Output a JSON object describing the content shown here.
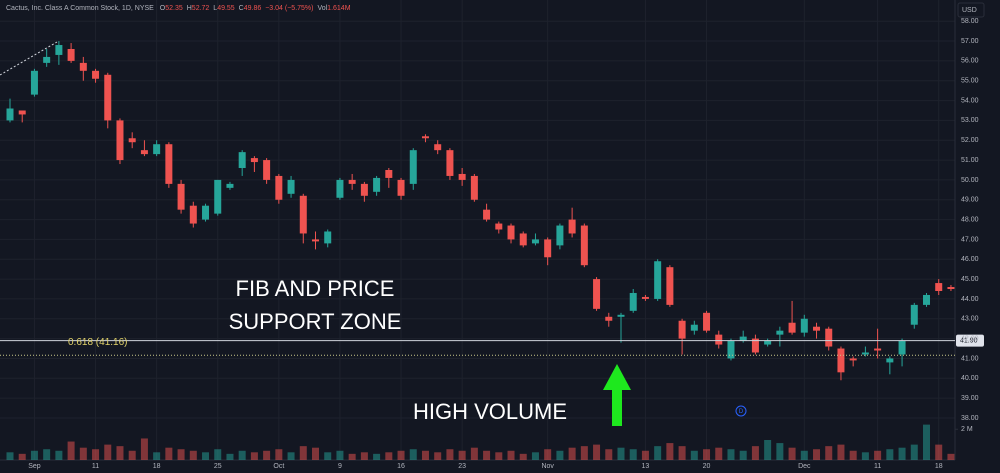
{
  "chart_data": {
    "type": "candlestick",
    "title": "Cactus, Inc. Class A Common Stock, 1D, NYSE",
    "header_stats": [
      {
        "key": "O",
        "value": "52.35"
      },
      {
        "key": "H",
        "value": "52.72"
      },
      {
        "key": "L",
        "value": "49.55"
      },
      {
        "key": "C",
        "value": "49.86"
      }
    ],
    "header_change": "−3.04 (−5.75%)",
    "header_volume": {
      "key": "Vol",
      "value": "1.614M"
    },
    "currency": "USD",
    "annotations": [
      "FIB AND PRICE",
      "SUPPORT ZONE",
      "HIGH VOLUME"
    ],
    "price_line": {
      "value": 41.9,
      "label": "41.90"
    },
    "fib_line": {
      "value": 41.16,
      "label": "0.618 (41.16)"
    },
    "dividend_marker": "D",
    "up_color": "#26a69a",
    "down_color": "#ef5350",
    "categories": [
      null,
      null,
      "Sep",
      null,
      null,
      null,
      null,
      "11",
      null,
      null,
      null,
      null,
      "18",
      null,
      null,
      null,
      null,
      "25",
      null,
      null,
      null,
      null,
      "Oct",
      null,
      null,
      null,
      null,
      "9",
      null,
      null,
      null,
      null,
      "16",
      null,
      null,
      null,
      null,
      "23",
      null,
      null,
      null,
      null,
      null,
      null,
      "Nov",
      null,
      null,
      null,
      null,
      null,
      null,
      null,
      "13",
      null,
      null,
      null,
      null,
      "20",
      null,
      null,
      null,
      null,
      null,
      null,
      null,
      "Dec",
      null,
      null,
      null,
      null,
      null,
      "11",
      null,
      null,
      null,
      null,
      "18",
      null
    ],
    "open": [
      53.0,
      53.5,
      54.3,
      55.9,
      56.3,
      56.6,
      55.9,
      55.5,
      55.3,
      53.0,
      52.1,
      51.5,
      51.3,
      51.8,
      49.8,
      48.7,
      48.0,
      48.3,
      49.6,
      50.6,
      51.1,
      51.0,
      50.2,
      49.3,
      49.2,
      47.0,
      46.8,
      49.1,
      50.0,
      49.8,
      49.4,
      50.5,
      50.0,
      49.8,
      52.2,
      51.8,
      51.5,
      50.3,
      50.2,
      48.5,
      47.8,
      47.7,
      47.3,
      46.8,
      47.0,
      46.7,
      48.0,
      47.7,
      45.0,
      43.1,
      43.1,
      43.4,
      44.1,
      44.0,
      45.6,
      42.9,
      42.4,
      43.3,
      42.2,
      41.0,
      41.9,
      42.0,
      41.7,
      42.2,
      42.8,
      42.3,
      42.6,
      42.5,
      41.5,
      41.0,
      41.2,
      41.5,
      40.8,
      41.2,
      42.7,
      43.7,
      44.8,
      44.6
    ],
    "high": [
      54.1,
      53.5,
      55.6,
      56.6,
      57.0,
      56.9,
      56.2,
      55.6,
      55.4,
      53.1,
      52.4,
      52.0,
      52.0,
      51.9,
      50.0,
      48.9,
      48.8,
      50.0,
      49.9,
      51.5,
      51.2,
      51.1,
      50.3,
      50.2,
      49.3,
      47.4,
      47.5,
      50.1,
      50.3,
      49.9,
      50.2,
      50.6,
      50.1,
      51.6,
      52.3,
      52.0,
      51.6,
      50.6,
      50.3,
      48.8,
      47.9,
      47.8,
      47.4,
      47.3,
      47.1,
      47.8,
      48.6,
      47.8,
      45.1,
      43.3,
      43.3,
      44.5,
      44.2,
      46.0,
      45.7,
      43.0,
      42.9,
      43.4,
      42.4,
      42.0,
      42.4,
      42.2,
      42.0,
      42.6,
      43.9,
      43.2,
      42.8,
      42.6,
      41.6,
      41.1,
      41.6,
      42.5,
      41.1,
      42.0,
      43.8,
      44.3,
      45.0,
      44.7
    ],
    "low": [
      52.9,
      52.9,
      54.2,
      55.7,
      55.8,
      55.9,
      55.0,
      54.9,
      52.6,
      50.8,
      51.6,
      51.2,
      51.2,
      49.6,
      48.3,
      47.6,
      47.9,
      48.2,
      49.5,
      50.2,
      50.4,
      49.8,
      48.8,
      49.1,
      46.8,
      46.5,
      46.6,
      49.0,
      49.5,
      48.9,
      49.2,
      49.6,
      49.0,
      49.5,
      51.9,
      51.3,
      50.0,
      49.7,
      48.9,
      47.9,
      47.3,
      46.8,
      46.6,
      46.7,
      45.7,
      46.5,
      47.1,
      45.6,
      43.4,
      42.6,
      41.8,
      43.3,
      43.9,
      43.9,
      43.6,
      41.2,
      42.2,
      42.3,
      41.5,
      40.9,
      41.8,
      41.2,
      41.6,
      41.6,
      42.2,
      42.1,
      42.0,
      41.4,
      39.9,
      40.6,
      41.1,
      41.0,
      40.2,
      40.6,
      42.5,
      43.6,
      44.2,
      44.4
    ],
    "close": [
      53.6,
      53.3,
      55.5,
      56.2,
      56.8,
      56.0,
      55.5,
      55.1,
      53.0,
      51.0,
      51.9,
      51.3,
      51.8,
      49.8,
      48.5,
      47.8,
      48.7,
      50.0,
      49.8,
      51.4,
      50.9,
      50.0,
      49.0,
      50.0,
      47.3,
      46.9,
      47.4,
      50.0,
      49.8,
      49.2,
      50.1,
      50.1,
      49.2,
      51.5,
      52.1,
      51.5,
      50.2,
      50.0,
      49.0,
      48.0,
      47.5,
      47.0,
      46.7,
      47.0,
      46.1,
      47.7,
      47.3,
      45.7,
      43.5,
      42.9,
      43.2,
      44.3,
      44.0,
      45.9,
      43.7,
      42.0,
      42.7,
      42.4,
      41.7,
      41.9,
      42.1,
      41.3,
      41.9,
      42.4,
      42.3,
      43.0,
      42.4,
      41.6,
      40.3,
      40.9,
      41.3,
      41.4,
      41.0,
      41.9,
      43.7,
      44.2,
      44.4,
      44.5
    ],
    "volume": [
      0.5,
      0.4,
      0.6,
      0.7,
      0.6,
      1.2,
      0.8,
      0.7,
      1.0,
      0.9,
      0.6,
      1.4,
      0.5,
      0.8,
      0.7,
      0.6,
      0.5,
      0.7,
      0.4,
      0.6,
      0.5,
      0.6,
      0.7,
      0.5,
      0.9,
      0.8,
      0.5,
      0.6,
      0.4,
      0.5,
      0.4,
      0.5,
      0.6,
      0.7,
      0.6,
      0.5,
      0.7,
      0.6,
      0.8,
      0.6,
      0.5,
      0.6,
      0.4,
      0.5,
      0.7,
      0.6,
      0.8,
      0.9,
      1.0,
      0.7,
      0.8,
      0.7,
      0.6,
      0.9,
      1.1,
      0.9,
      0.6,
      0.7,
      0.8,
      0.7,
      0.6,
      0.9,
      1.3,
      1.1,
      0.8,
      0.6,
      0.7,
      0.9,
      1.0,
      0.6,
      0.5,
      0.6,
      0.7,
      0.8,
      1.0,
      2.3,
      1.0,
      0.4
    ],
    "ylim": [
      35.88,
      59.07
    ],
    "yticks": [
      {
        "value": 38,
        "label": "38.00"
      },
      {
        "value": 39,
        "label": "39.00"
      },
      {
        "value": 40,
        "label": "40.00"
      },
      {
        "value": 41,
        "label": "41.00"
      },
      {
        "value": 42,
        "label": "42.00"
      },
      {
        "value": 43,
        "label": "43.00"
      },
      {
        "value": 44,
        "label": "44.00"
      },
      {
        "value": 45,
        "label": "45.00"
      },
      {
        "value": 46,
        "label": "46.00"
      },
      {
        "value": 47,
        "label": "47.00"
      },
      {
        "value": 48,
        "label": "48.00"
      },
      {
        "value": 49,
        "label": "49.00"
      },
      {
        "value": 50,
        "label": "50.00"
      },
      {
        "value": 51,
        "label": "51.00"
      },
      {
        "value": 52,
        "label": "52.00"
      },
      {
        "value": 53,
        "label": "53.00"
      },
      {
        "value": 54,
        "label": "54.00"
      },
      {
        "value": 55,
        "label": "55.00"
      },
      {
        "value": 56,
        "label": "56.00"
      },
      {
        "value": 57,
        "label": "57.00"
      },
      {
        "value": 58,
        "label": "58.00"
      }
    ],
    "volume_lim": [
      0,
      2.6
    ],
    "volume_ticks": [
      {
        "value": 2,
        "label": "2 M"
      }
    ],
    "grid": true
  }
}
